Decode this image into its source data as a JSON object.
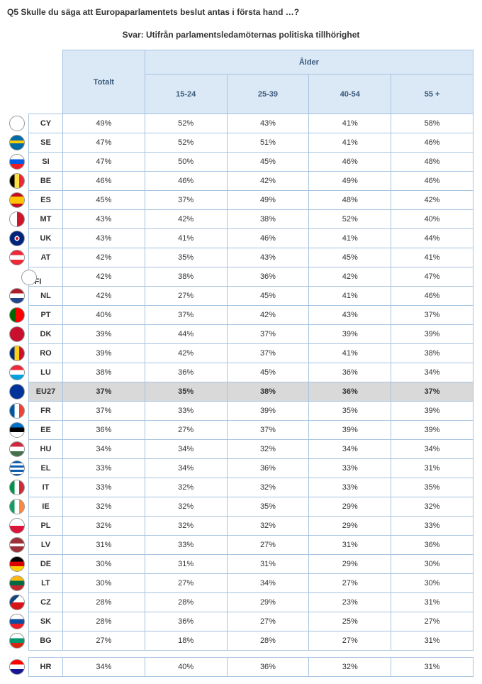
{
  "question": "Q5 Skulle du säga att Europaparlamentets beslut antas i första hand …?",
  "answer": "Svar: Utifrån parlamentsledamöternas politiska tillhörighet",
  "headers": {
    "totalt": "Totalt",
    "age_group": "Ålder",
    "ages": [
      "15-24",
      "25-39",
      "40-54",
      "55 +"
    ]
  },
  "rows": [
    {
      "code": "CY",
      "flag": "cy",
      "values": [
        "49%",
        "52%",
        "43%",
        "41%",
        "58%"
      ]
    },
    {
      "code": "SE",
      "flag": "se",
      "values": [
        "47%",
        "52%",
        "51%",
        "41%",
        "46%"
      ]
    },
    {
      "code": "SI",
      "flag": "si",
      "values": [
        "47%",
        "50%",
        "45%",
        "46%",
        "48%"
      ]
    },
    {
      "code": "BE",
      "flag": "be",
      "values": [
        "46%",
        "46%",
        "42%",
        "49%",
        "46%"
      ]
    },
    {
      "code": "ES",
      "flag": "es",
      "values": [
        "45%",
        "37%",
        "49%",
        "48%",
        "42%"
      ]
    },
    {
      "code": "MT",
      "flag": "mt",
      "values": [
        "43%",
        "42%",
        "38%",
        "52%",
        "40%"
      ]
    },
    {
      "code": "UK",
      "flag": "uk",
      "values": [
        "43%",
        "41%",
        "46%",
        "41%",
        "44%"
      ]
    },
    {
      "code": "AT",
      "flag": "at",
      "values": [
        "42%",
        "35%",
        "43%",
        "45%",
        "41%"
      ]
    },
    {
      "code": "FI",
      "flag": "fi",
      "values": [
        "42%",
        "38%",
        "36%",
        "42%",
        "47%"
      ]
    },
    {
      "code": "NL",
      "flag": "nl",
      "values": [
        "42%",
        "27%",
        "45%",
        "41%",
        "46%"
      ]
    },
    {
      "code": "PT",
      "flag": "pt",
      "values": [
        "40%",
        "37%",
        "42%",
        "43%",
        "37%"
      ]
    },
    {
      "code": "DK",
      "flag": "dk",
      "values": [
        "39%",
        "44%",
        "37%",
        "39%",
        "39%"
      ]
    },
    {
      "code": "RO",
      "flag": "ro",
      "values": [
        "39%",
        "42%",
        "37%",
        "41%",
        "38%"
      ]
    },
    {
      "code": "LU",
      "flag": "lu",
      "values": [
        "38%",
        "36%",
        "45%",
        "36%",
        "34%"
      ]
    },
    {
      "code": "EU27",
      "flag": "eu",
      "values": [
        "37%",
        "35%",
        "38%",
        "36%",
        "37%"
      ],
      "highlight": true
    },
    {
      "code": "FR",
      "flag": "fr",
      "values": [
        "37%",
        "33%",
        "39%",
        "35%",
        "39%"
      ]
    },
    {
      "code": "EE",
      "flag": "ee",
      "values": [
        "36%",
        "27%",
        "37%",
        "39%",
        "39%"
      ]
    },
    {
      "code": "HU",
      "flag": "hu",
      "values": [
        "34%",
        "34%",
        "32%",
        "34%",
        "34%"
      ]
    },
    {
      "code": "EL",
      "flag": "el",
      "values": [
        "33%",
        "34%",
        "36%",
        "33%",
        "31%"
      ]
    },
    {
      "code": "IT",
      "flag": "it",
      "values": [
        "33%",
        "32%",
        "32%",
        "33%",
        "35%"
      ]
    },
    {
      "code": "IE",
      "flag": "ie",
      "values": [
        "32%",
        "32%",
        "35%",
        "29%",
        "32%"
      ]
    },
    {
      "code": "PL",
      "flag": "pl",
      "values": [
        "32%",
        "32%",
        "32%",
        "29%",
        "33%"
      ]
    },
    {
      "code": "LV",
      "flag": "lv",
      "values": [
        "31%",
        "33%",
        "27%",
        "31%",
        "36%"
      ]
    },
    {
      "code": "DE",
      "flag": "de",
      "values": [
        "30%",
        "31%",
        "31%",
        "29%",
        "30%"
      ]
    },
    {
      "code": "LT",
      "flag": "lt",
      "values": [
        "30%",
        "27%",
        "34%",
        "27%",
        "30%"
      ]
    },
    {
      "code": "CZ",
      "flag": "cz",
      "values": [
        "28%",
        "28%",
        "29%",
        "23%",
        "31%"
      ]
    },
    {
      "code": "SK",
      "flag": "sk",
      "values": [
        "28%",
        "36%",
        "27%",
        "25%",
        "27%"
      ]
    },
    {
      "code": "BG",
      "flag": "bg",
      "values": [
        "27%",
        "18%",
        "28%",
        "27%",
        "31%"
      ]
    }
  ],
  "separated_rows": [
    {
      "code": "HR",
      "flag": "hr",
      "values": [
        "34%",
        "40%",
        "36%",
        "32%",
        "31%"
      ]
    }
  ],
  "flag_styles": {
    "cy": "background:#fff;",
    "se": "background:linear-gradient(#006aa7 35%,#fecc00 35%,#fecc00 55%,#006aa7 55%);",
    "si": "background:linear-gradient(#fff 33%,#005ce5 33%,#005ce5 66%,#ed1c24 66%);",
    "be": "background:linear-gradient(90deg,#000 33%,#fae042 33%,#fae042 66%,#ed2939 66%);",
    "es": "background:linear-gradient(#c60b1e 25%,#ffc400 25%,#ffc400 75%,#c60b1e 75%);",
    "mt": "background:linear-gradient(90deg,#fff 50%,#cf142b 50%);",
    "uk": "background:radial-gradient(circle,#cf142b 15%,#fff 15%,#fff 25%,#00247d 25%);",
    "at": "background:linear-gradient(#ed2939 33%,#fff 33%,#fff 66%,#ed2939 66%);",
    "fi": "background:#fff;position:relative;",
    "nl": "background:linear-gradient(#ae1c28 33%,#fff 33%,#fff 66%,#21468b 66%);",
    "pt": "background:linear-gradient(90deg,#006600 40%,#ff0000 40%);",
    "dk": "background:#c8102e;",
    "ro": "background:linear-gradient(90deg,#002b7f 33%,#fcd116 33%,#fcd116 66%,#ce1126 66%);",
    "lu": "background:linear-gradient(#ed2939 33%,#fff 33%,#fff 66%,#00a1de 66%);",
    "eu": "background:#003399;",
    "fr": "background:linear-gradient(90deg,#0055a4 33%,#fff 33%,#fff 66%,#ef4135 66%);",
    "ee": "background:linear-gradient(#0072ce 33%,#000 33%,#000 66%,#fff 66%);",
    "hu": "background:linear-gradient(#cd2a3e 33%,#fff 33%,#fff 66%,#436f4d 66%);",
    "el": "background:repeating-linear-gradient(#0d5eaf,#0d5eaf 3px,#fff 3px,#fff 6px);",
    "it": "background:linear-gradient(90deg,#009246 33%,#fff 33%,#fff 66%,#ce2b37 66%);",
    "ie": "background:linear-gradient(90deg,#169b62 33%,#fff 33%,#fff 66%,#ff883e 66%);",
    "pl": "background:linear-gradient(#fff 50%,#dc143c 50%);",
    "lv": "background:linear-gradient(#9e3039 40%,#fff 40%,#fff 60%,#9e3039 60%);",
    "de": "background:linear-gradient(#000 33%,#dd0000 33%,#dd0000 66%,#ffce00 66%);",
    "lt": "background:linear-gradient(#fdb913 33%,#006a44 33%,#006a44 66%,#c1272d 66%);",
    "cz": "background:linear-gradient(135deg,#11457e 35%,transparent 35%),linear-gradient(#fff 50%,#d7141a 50%);",
    "sk": "background:linear-gradient(#fff 33%,#0b4ea2 33%,#0b4ea2 66%,#ee1c25 66%);",
    "bg": "background:linear-gradient(#fff 33%,#00966e 33%,#00966e 66%,#d62612 66%);",
    "hr": "background:linear-gradient(#ff0000 33%,#fff 33%,#fff 66%,#171796 66%);"
  }
}
